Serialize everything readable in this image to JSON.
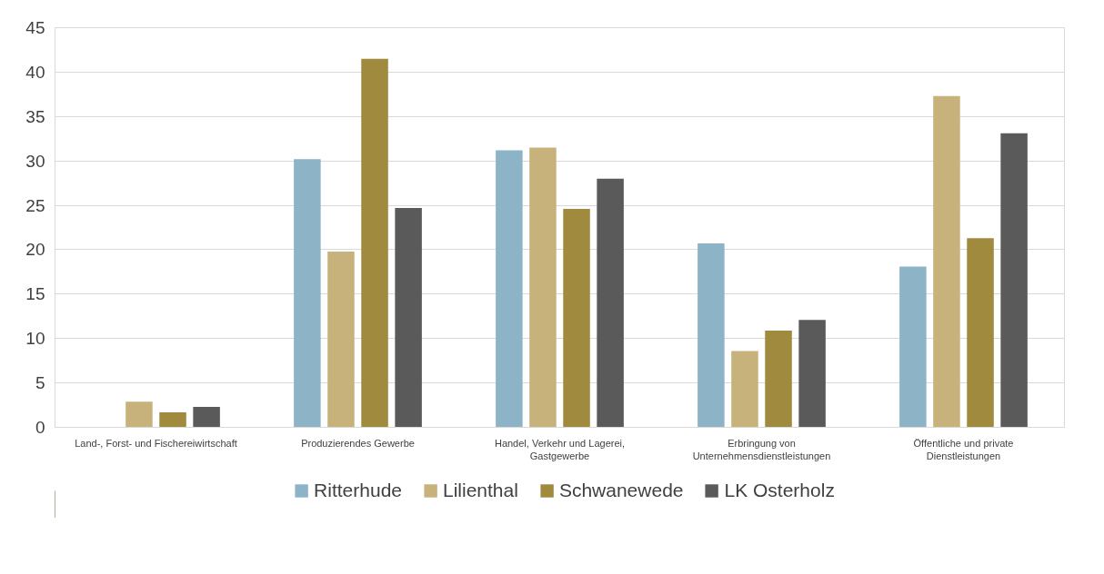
{
  "chart_data": {
    "type": "bar",
    "categories": [
      "Land-, Forst- und Fischereiwirtschaft",
      "Produzierendes Gewerbe",
      "Handel, Verkehr und Lagerei, Gastgewerbe",
      "Erbringung von Unternehmensdienstleistungen",
      "Öffentliche und private Dienstleistungen"
    ],
    "series": [
      {
        "name": "Ritterhude",
        "color": "#8db3c7",
        "values": [
          0,
          30.2,
          31.2,
          20.7,
          18.1
        ]
      },
      {
        "name": "Lilienthal",
        "color": "#c8b27c",
        "values": [
          2.9,
          19.8,
          31.5,
          8.6,
          37.3
        ]
      },
      {
        "name": "Schwanewede",
        "color": "#a08a3e",
        "values": [
          1.7,
          41.5,
          24.6,
          10.9,
          21.3
        ]
      },
      {
        "name": "LK Osterholz",
        "color": "#5a5a5a",
        "values": [
          2.3,
          24.7,
          28.0,
          12.1,
          33.1
        ]
      }
    ],
    "ylim": [
      0,
      45
    ],
    "yticks": [
      0,
      5,
      10,
      15,
      20,
      25,
      30,
      35,
      40,
      45
    ],
    "grid": "y",
    "legend": "bottom"
  }
}
